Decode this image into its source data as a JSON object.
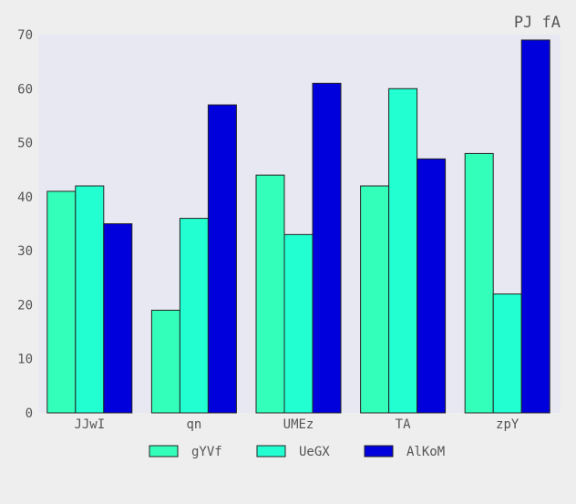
{
  "chart_data": {
    "type": "bar",
    "title": "PJ fA",
    "xlabel": "",
    "ylabel": "",
    "categories": [
      "JJwI",
      "qn",
      "UMEz",
      "TA",
      "zpY"
    ],
    "series": [
      {
        "name": "gYVf",
        "color": "#33ffbb",
        "values": [
          41,
          19,
          44,
          42,
          48
        ]
      },
      {
        "name": "UeGX",
        "color": "#22ffd1",
        "values": [
          42,
          36,
          33,
          60,
          22
        ]
      },
      {
        "name": "AlKoM",
        "color": "#0000dd",
        "values": [
          35,
          57,
          61,
          47,
          69
        ]
      }
    ],
    "ylim": [
      0,
      70
    ],
    "yticks": [
      0,
      10,
      20,
      30,
      40,
      50,
      60,
      70
    ],
    "grid": false,
    "legend_position": "bottom-center",
    "plot_background": "#e8e8f2"
  }
}
